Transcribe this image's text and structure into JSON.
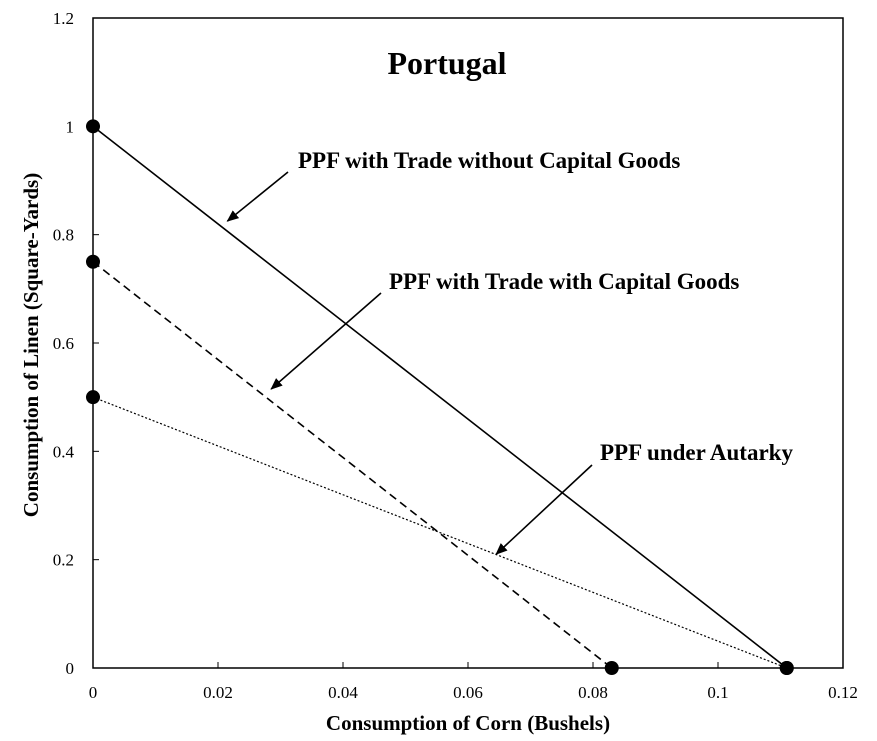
{
  "chart_data": {
    "type": "line",
    "title": "Portugal",
    "xlabel": "Consumption of Corn (Bushels)",
    "ylabel": "Consumption of Linen (Square-Yards)",
    "xlim": [
      0,
      0.12
    ],
    "ylim": [
      0,
      1.2
    ],
    "x_ticks": [
      0,
      0.02,
      0.04,
      0.06,
      0.08,
      0.1,
      0.12
    ],
    "x_tick_labels": [
      "0",
      "0.02",
      "0.04",
      "0.06",
      "0.08",
      "0.1",
      "0.12"
    ],
    "y_ticks": [
      0,
      0.2,
      0.4,
      0.6,
      0.8,
      1,
      1.2
    ],
    "y_tick_labels": [
      "0",
      "0.2",
      "0.4",
      "0.6",
      "0.8",
      "1",
      "1.2"
    ],
    "grid": false,
    "legend": "none",
    "series": [
      {
        "name": "PPF with Trade without Capital Goods",
        "style": "solid",
        "x": [
          0,
          0.111
        ],
        "y": [
          1.0,
          0
        ]
      },
      {
        "name": "PPF with Trade with Capital Goods",
        "style": "dashed",
        "x": [
          0,
          0.083
        ],
        "y": [
          0.75,
          0
        ]
      },
      {
        "name": "PPF under Autarky",
        "style": "dotted",
        "x": [
          0,
          0.111
        ],
        "y": [
          0.5,
          0
        ]
      }
    ],
    "annotations": [
      {
        "text": "PPF with Trade without Capital Goods",
        "target_series": 0,
        "arrow_to": [
          0.0215,
          0.825
        ]
      },
      {
        "text": "PPF with Trade with Capital Goods",
        "target_series": 1,
        "arrow_to": [
          0.0285,
          0.515
        ]
      },
      {
        "text": "PPF under Autarky",
        "target_series": 2,
        "arrow_to": [
          0.0645,
          0.21
        ]
      }
    ],
    "line_color": "#000000"
  }
}
